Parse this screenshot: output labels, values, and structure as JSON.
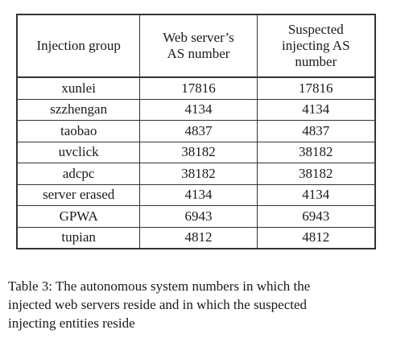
{
  "table": {
    "headers": [
      [
        "Injection group"
      ],
      [
        "Web server’s",
        "AS number"
      ],
      [
        "Suspected",
        "injecting AS",
        "number"
      ]
    ],
    "rows": [
      [
        "xunlei",
        "17816",
        "17816"
      ],
      [
        "szzhengan",
        "4134",
        "4134"
      ],
      [
        "taobao",
        "4837",
        "4837"
      ],
      [
        "uvclick",
        "38182",
        "38182"
      ],
      [
        "adcpc",
        "38182",
        "38182"
      ],
      [
        "server erased",
        "4134",
        "4134"
      ],
      [
        "GPWA",
        "6943",
        "6943"
      ],
      [
        "tupian",
        "4812",
        "4812"
      ]
    ]
  },
  "caption": {
    "lines": [
      "Table 3:  The autonomous system numbers in which the",
      "injected web servers reside and in which the suspected",
      "injecting entities reside"
    ]
  }
}
